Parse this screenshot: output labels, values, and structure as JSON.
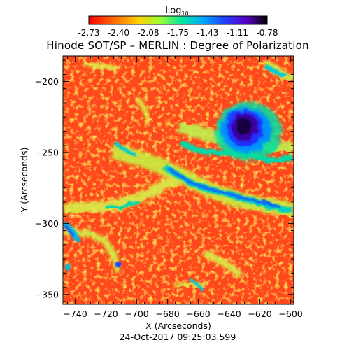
{
  "colorbar": {
    "label": "Log",
    "label_sub": "10",
    "tick_labels": [
      "-2.73",
      "-2.40",
      "-2.08",
      "-1.75",
      "-1.43",
      "-1.11",
      "-0.78"
    ],
    "range": [
      -2.73,
      -0.78
    ]
  },
  "title": "Hinode SOT/SP – MERLIN : Degree of Polarization",
  "x_axis": {
    "label": "X (Arcseconds)",
    "range": [
      -748,
      -598
    ],
    "ticks": [
      {
        "value": -740,
        "label": "−740"
      },
      {
        "value": -720,
        "label": "−720"
      },
      {
        "value": -700,
        "label": "−700"
      },
      {
        "value": -680,
        "label": "−680"
      },
      {
        "value": -660,
        "label": "−660"
      },
      {
        "value": -640,
        "label": "−640"
      },
      {
        "value": -620,
        "label": "−620"
      },
      {
        "value": -600,
        "label": "−600"
      }
    ]
  },
  "y_axis": {
    "label": "Y (Arcseconds)",
    "range": [
      -357,
      -182
    ],
    "ticks": [
      {
        "value": -200,
        "label": "−200"
      },
      {
        "value": -250,
        "label": "−250"
      },
      {
        "value": -300,
        "label": "−300"
      },
      {
        "value": -350,
        "label": "−350"
      }
    ]
  },
  "timestamp": "24-Oct-2017 09:25:03.599",
  "colors": {
    "background_map": "#ff4a1f",
    "colormap": [
      "#ff0000",
      "#ff7f00",
      "#ffff00",
      "#00ff80",
      "#00c0ff",
      "#0040ff",
      "#4000c0",
      "#000000"
    ]
  }
}
